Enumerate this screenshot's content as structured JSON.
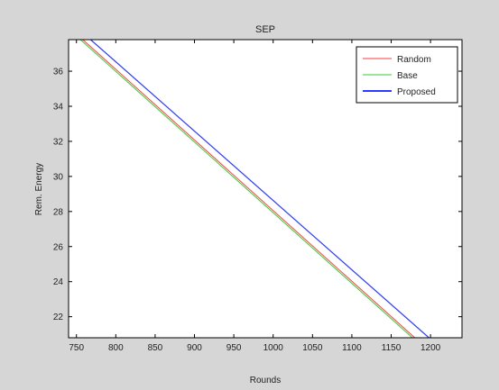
{
  "chart_data": {
    "type": "line",
    "title": "SEP",
    "xlabel": "Rounds",
    "ylabel": "Rem. Energy",
    "xlim": [
      740,
      1240
    ],
    "ylim": [
      20.8,
      37.8
    ],
    "xticks": [
      750,
      800,
      850,
      900,
      950,
      1000,
      1050,
      1100,
      1150,
      1200
    ],
    "yticks": [
      22,
      24,
      26,
      28,
      30,
      32,
      34,
      36
    ],
    "grid": false,
    "legend_position": "top-right",
    "series": [
      {
        "name": "Random",
        "color": "#ff3b3b",
        "x": [
          758,
          1180
        ],
        "y": [
          37.8,
          20.8
        ]
      },
      {
        "name": "Base",
        "color": "#33cc33",
        "x": [
          755,
          1177
        ],
        "y": [
          37.8,
          20.8
        ]
      },
      {
        "name": "Proposed",
        "color": "#2b3bff",
        "x": [
          768,
          1198
        ],
        "y": [
          37.8,
          20.8
        ]
      }
    ]
  }
}
